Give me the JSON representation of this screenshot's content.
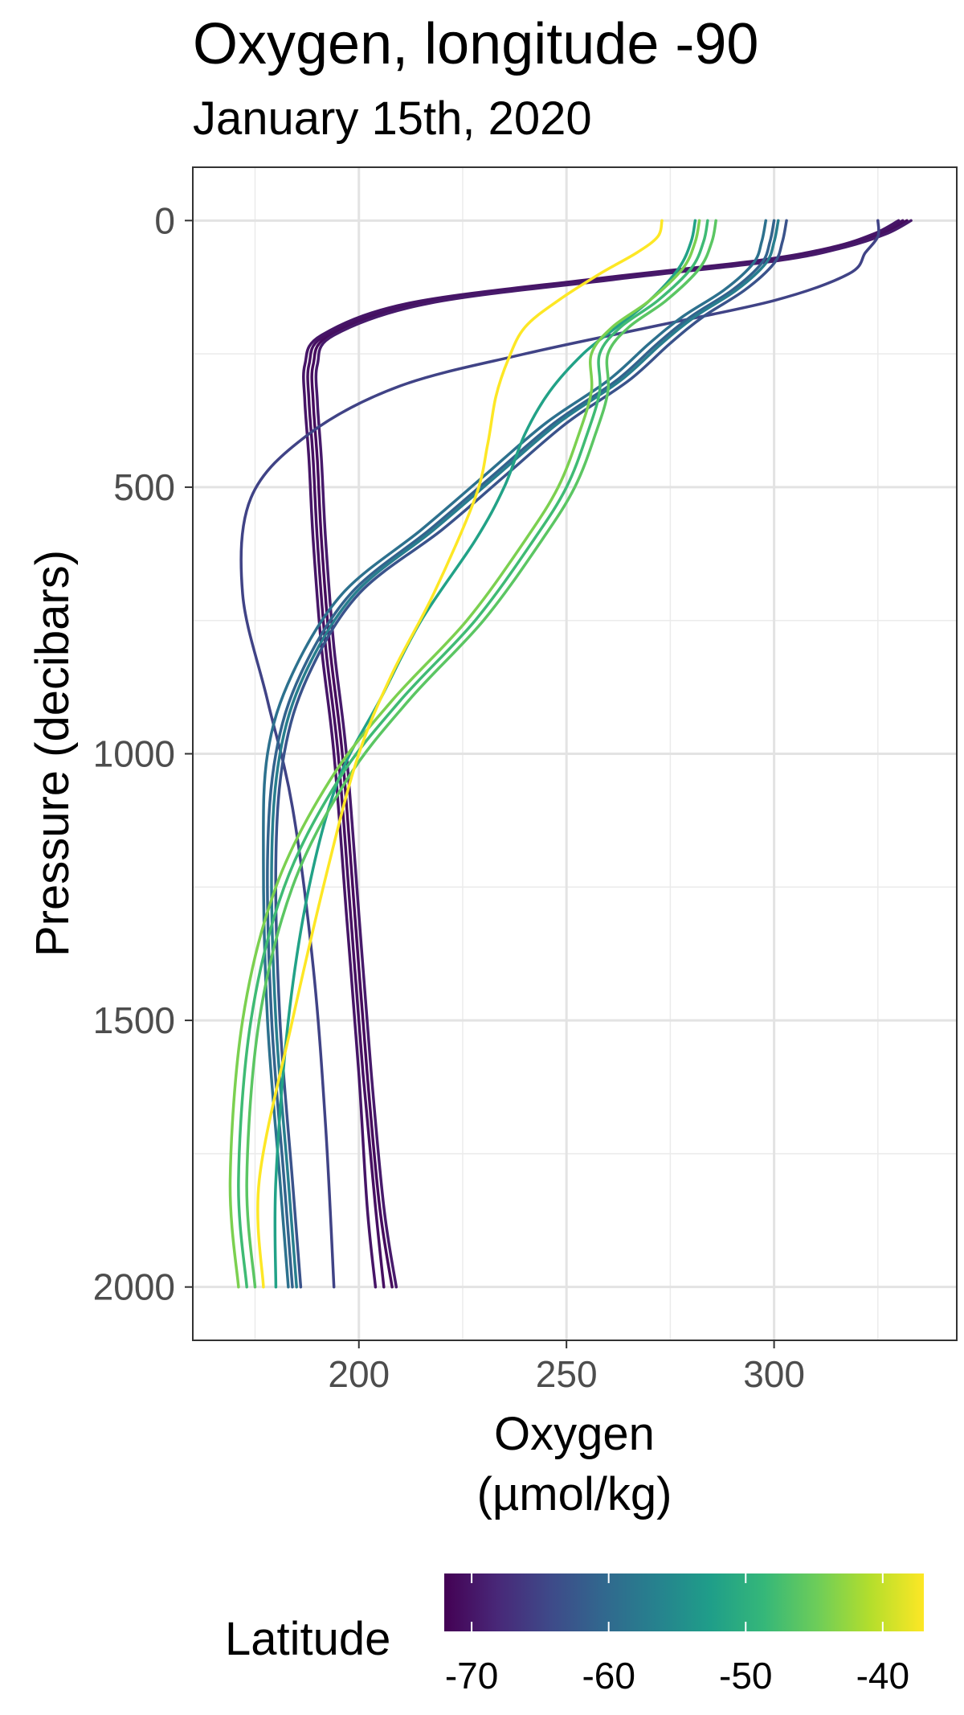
{
  "chart_data": {
    "type": "line",
    "title": "Oxygen, longitude -90",
    "subtitle": "January 15th, 2020",
    "xlabel": [
      "Oxygen",
      "(µmol/kg)"
    ],
    "ylabel": "Pressure (decibars)",
    "xlim": [
      160,
      344
    ],
    "ylim": [
      2100,
      -100
    ],
    "y_reversed": true,
    "x_ticks": [
      200,
      250,
      300
    ],
    "x_minor": [
      175,
      225,
      275,
      325
    ],
    "y_ticks": [
      0,
      500,
      1000,
      1500,
      2000
    ],
    "y_minor": [
      250,
      750,
      1250,
      1750
    ],
    "grid": true,
    "legend": {
      "title": "Latitude",
      "placement": "bottom",
      "type": "colorbar",
      "range": [
        -72,
        -37
      ],
      "ticks": [
        -70,
        -60,
        -50,
        -40
      ],
      "colors": [
        "#440154",
        "#482878",
        "#3E4A89",
        "#31688E",
        "#26828E",
        "#1F9E89",
        "#35B779",
        "#6DCD59",
        "#B4DE2C",
        "#FDE725"
      ]
    },
    "series": [
      {
        "lat": -71,
        "x": [
          332,
          326,
          316,
          300,
          260,
          215,
          193,
          189,
          189,
          190,
          191,
          193,
          196,
          199,
          202,
          205,
          208
        ],
        "y": [
          0,
          25,
          50,
          75,
          110,
          155,
          215,
          270,
          340,
          450,
          600,
          800,
          1000,
          1300,
          1600,
          1850,
          2000
        ]
      },
      {
        "lat": -70.5,
        "x": [
          331,
          325,
          315,
          298,
          258,
          214,
          192,
          188,
          188,
          189,
          190,
          192,
          195,
          198,
          201,
          204,
          206
        ],
        "y": [
          0,
          25,
          50,
          75,
          110,
          155,
          215,
          270,
          340,
          450,
          600,
          800,
          1000,
          1300,
          1600,
          1850,
          2000
        ]
      },
      {
        "lat": -70,
        "x": [
          330,
          324,
          314,
          296,
          256,
          212,
          191,
          187,
          187,
          188,
          189,
          191,
          194,
          197,
          200,
          202,
          204
        ],
        "y": [
          0,
          25,
          50,
          75,
          110,
          155,
          215,
          270,
          340,
          450,
          600,
          800,
          1000,
          1300,
          1600,
          1850,
          2000
        ]
      },
      {
        "lat": -69.5,
        "x": [
          333,
          327,
          317,
          301,
          262,
          217,
          194,
          190,
          190,
          191,
          192,
          194,
          197,
          200,
          203,
          206,
          209
        ],
        "y": [
          0,
          25,
          50,
          75,
          110,
          155,
          215,
          270,
          340,
          450,
          600,
          800,
          1000,
          1300,
          1600,
          1850,
          2000
        ]
      },
      {
        "lat": -65,
        "x": [
          325,
          325,
          322,
          318,
          300,
          270,
          240,
          210,
          188,
          174,
          172,
          178,
          184,
          189,
          192,
          194
        ],
        "y": [
          0,
          30,
          60,
          100,
          150,
          200,
          250,
          310,
          400,
          520,
          700,
          900,
          1100,
          1400,
          1700,
          2000
        ]
      },
      {
        "lat": -63,
        "x": [
          303,
          302,
          300,
          293,
          283,
          275,
          265,
          250,
          235,
          220,
          200,
          188,
          182,
          180,
          181,
          184,
          186
        ],
        "y": [
          0,
          40,
          80,
          130,
          180,
          230,
          300,
          380,
          480,
          580,
          700,
          850,
          1000,
          1200,
          1500,
          1800,
          2000
        ]
      },
      {
        "lat": -61,
        "x": [
          300,
          299,
          297,
          290,
          280,
          272,
          262,
          247,
          232,
          217,
          198,
          186,
          180,
          178,
          179,
          182,
          184
        ],
        "y": [
          0,
          40,
          80,
          130,
          180,
          230,
          300,
          380,
          480,
          580,
          700,
          850,
          1000,
          1200,
          1500,
          1800,
          2000
        ]
      },
      {
        "lat": -59,
        "x": [
          298,
          297,
          295,
          288,
          278,
          270,
          260,
          245,
          230,
          215,
          196,
          184,
          178,
          177,
          178,
          181,
          183
        ],
        "y": [
          0,
          40,
          80,
          130,
          180,
          230,
          300,
          380,
          480,
          580,
          700,
          850,
          1000,
          1200,
          1500,
          1800,
          2000
        ]
      },
      {
        "lat": -57,
        "x": [
          301,
          300,
          298,
          291,
          281,
          273,
          263,
          248,
          233,
          218,
          199,
          187,
          181,
          179,
          180,
          183,
          185
        ],
        "y": [
          0,
          40,
          80,
          130,
          180,
          230,
          300,
          380,
          480,
          580,
          700,
          850,
          1000,
          1200,
          1500,
          1800,
          2000
        ]
      },
      {
        "lat": -52,
        "x": [
          281,
          280,
          277,
          270,
          262,
          254,
          246,
          240,
          235,
          228,
          215,
          205,
          195,
          188,
          183,
          180,
          180
        ],
        "y": [
          0,
          40,
          90,
          150,
          200,
          250,
          320,
          400,
          500,
          600,
          750,
          900,
          1050,
          1250,
          1500,
          1800,
          2000
        ]
      },
      {
        "lat": -48,
        "x": [
          284,
          283,
          280,
          272,
          263,
          258,
          258,
          255,
          250,
          242,
          228,
          210,
          195,
          182,
          174,
          171,
          173
        ],
        "y": [
          0,
          40,
          90,
          150,
          200,
          250,
          320,
          400,
          500,
          600,
          750,
          900,
          1050,
          1250,
          1500,
          1800,
          2000
        ]
      },
      {
        "lat": -46,
        "x": [
          286,
          285,
          282,
          274,
          265,
          260,
          260,
          257,
          252,
          244,
          230,
          212,
          197,
          184,
          176,
          173,
          175
        ],
        "y": [
          0,
          40,
          90,
          150,
          200,
          250,
          320,
          400,
          500,
          600,
          750,
          900,
          1050,
          1250,
          1500,
          1800,
          2000
        ]
      },
      {
        "lat": -44,
        "x": [
          282,
          281,
          278,
          270,
          261,
          256,
          256,
          253,
          248,
          240,
          226,
          208,
          193,
          180,
          172,
          169,
          171
        ],
        "y": [
          0,
          40,
          90,
          150,
          200,
          250,
          320,
          400,
          500,
          600,
          750,
          900,
          1050,
          1250,
          1500,
          1800,
          2000
        ]
      },
      {
        "lat": -37,
        "x": [
          273,
          272,
          267,
          258,
          248,
          240,
          236,
          233,
          231,
          228,
          218,
          208,
          200,
          193,
          184,
          176,
          177
        ],
        "y": [
          0,
          30,
          60,
          100,
          150,
          200,
          260,
          330,
          420,
          520,
          700,
          850,
          1000,
          1200,
          1500,
          1800,
          2000
        ]
      }
    ]
  }
}
